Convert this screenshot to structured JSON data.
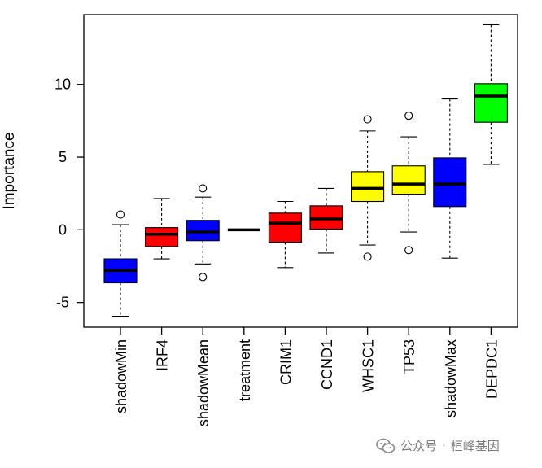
{
  "chart_data": {
    "type": "boxplot",
    "title": "",
    "xlabel": "",
    "ylabel": "Importance",
    "ylim": [
      -6.7,
      14.8
    ],
    "yticks": [
      -5,
      0,
      5,
      10
    ],
    "ytick_labels": [
      "-5",
      "0",
      "5",
      "10"
    ],
    "grid": false,
    "legend": "none",
    "categories": [
      "shadowMin",
      "IRF4",
      "shadowMean",
      "treatment",
      "CRIM1",
      "CCND1",
      "WHSC1",
      "TP53",
      "shadowMax",
      "DEPDC1"
    ],
    "boxes": [
      {
        "name": "shadowMin",
        "color": "#0000FF",
        "whisker_low": -5.95,
        "q1": -3.65,
        "median": -2.8,
        "q3": -2.0,
        "whisker_high": 0.35,
        "outliers": [
          1.05
        ]
      },
      {
        "name": "IRF4",
        "color": "#FF0000",
        "whisker_low": -2.0,
        "q1": -1.15,
        "median": -0.3,
        "q3": 0.15,
        "whisker_high": 2.15,
        "outliers": []
      },
      {
        "name": "shadowMean",
        "color": "#0000FF",
        "whisker_low": -2.35,
        "q1": -0.75,
        "median": -0.15,
        "q3": 0.65,
        "whisker_high": 2.25,
        "outliers": [
          2.85,
          -3.25
        ]
      },
      {
        "name": "treatment",
        "color": "#000000",
        "whisker_low": 0.0,
        "q1": 0.0,
        "median": 0.0,
        "q3": 0.0,
        "whisker_high": 0.0,
        "outliers": []
      },
      {
        "name": "CRIM1",
        "color": "#FF0000",
        "whisker_low": -2.6,
        "q1": -0.85,
        "median": 0.45,
        "q3": 1.15,
        "whisker_high": 1.95,
        "outliers": []
      },
      {
        "name": "CCND1",
        "color": "#FF0000",
        "whisker_low": -1.6,
        "q1": 0.05,
        "median": 0.75,
        "q3": 1.65,
        "whisker_high": 2.85,
        "outliers": []
      },
      {
        "name": "WHSC1",
        "color": "#FFFF00",
        "whisker_low": -1.05,
        "q1": 1.95,
        "median": 2.85,
        "q3": 4.0,
        "whisker_high": 6.8,
        "outliers": [
          7.6,
          -1.85
        ]
      },
      {
        "name": "TP53",
        "color": "#FFFF00",
        "whisker_low": -0.15,
        "q1": 2.45,
        "median": 3.15,
        "q3": 4.4,
        "whisker_high": 6.4,
        "outliers": [
          7.85,
          -1.4
        ]
      },
      {
        "name": "shadowMax",
        "color": "#0000FF",
        "whisker_low": -1.95,
        "q1": 1.6,
        "median": 3.15,
        "q3": 4.95,
        "whisker_high": 9.0,
        "outliers": []
      },
      {
        "name": "DEPDC1",
        "color": "#00FF00",
        "whisker_low": 4.5,
        "q1": 7.4,
        "median": 9.2,
        "q3": 10.05,
        "whisker_high": 14.1,
        "outliers": []
      }
    ]
  },
  "watermark": {
    "text": "公众号",
    "separator": "·",
    "brand": "桓峰基因"
  }
}
